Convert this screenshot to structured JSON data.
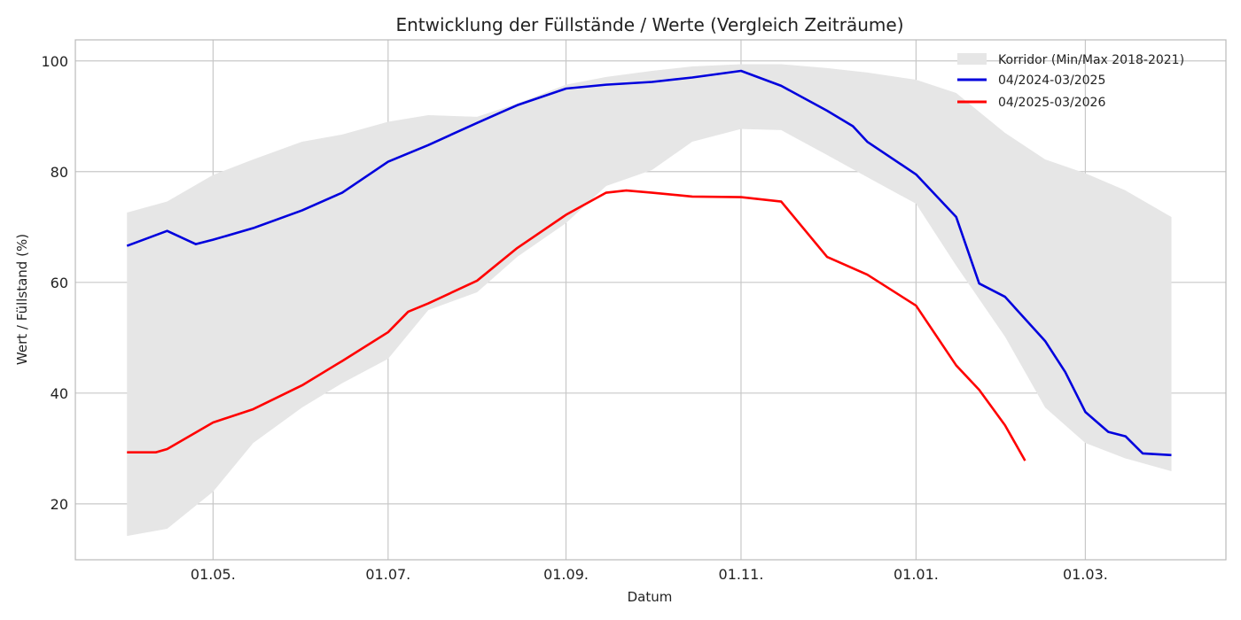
{
  "chart_data": {
    "type": "line",
    "title": "Entwicklung der Füllstände / Werte (Vergleich Zeiträume)",
    "xlabel": "Datum",
    "ylabel": "Wert / Füllstand (%)",
    "ylim": [
      9.9,
      103.8
    ],
    "xlim": [
      "14.03.",
      "19.04."
    ],
    "grid": true,
    "legend_position": "top-right",
    "x_ticks": [
      "01.05.",
      "01.07.",
      "01.09.",
      "01.11.",
      "01.01.",
      "01.03."
    ],
    "y_ticks": [
      20,
      40,
      60,
      80,
      100
    ],
    "band": {
      "name": "Korridor (Min/Max 2018-2021)",
      "color": "#e6e6e6",
      "x": [
        "01.04.",
        "15.04.",
        "01.05.",
        "15.05.",
        "01.06.",
        "15.06.",
        "01.07.",
        "15.07.",
        "01.08.",
        "15.08.",
        "01.09.",
        "15.09.",
        "01.10.",
        "15.10.",
        "01.11.",
        "15.11.",
        "01.12.",
        "15.12.",
        "01.01.",
        "15.01.",
        "01.02.",
        "15.02.",
        "01.03.",
        "15.03.",
        "31.03."
      ],
      "upper": [
        72.6,
        74.6,
        79.4,
        82.2,
        85.4,
        86.7,
        89.0,
        90.2,
        89.9,
        92.3,
        95.7,
        97.1,
        98.2,
        99.0,
        99.4,
        99.4,
        98.7,
        97.9,
        96.6,
        94.2,
        87.0,
        82.2,
        79.7,
        76.6,
        71.8
      ],
      "lower": [
        14.2,
        15.5,
        22.2,
        31.0,
        37.4,
        41.8,
        46.2,
        55.0,
        58.2,
        64.6,
        70.7,
        77.4,
        80.3,
        85.4,
        87.7,
        87.5,
        83.0,
        79.0,
        74.2,
        63.0,
        50.2,
        37.4,
        31.0,
        28.2,
        25.9
      ]
    },
    "series": [
      {
        "name": "04/2024-03/2025",
        "color": "#0000dd",
        "x": [
          "01.04.",
          "15.04.",
          "25.04.",
          "01.05.",
          "15.05.",
          "01.06.",
          "15.06.",
          "01.07.",
          "15.07.",
          "01.08.",
          "15.08.",
          "01.09.",
          "15.09.",
          "01.10.",
          "15.10.",
          "01.11.",
          "15.11.",
          "01.12.",
          "10.12.",
          "15.12.",
          "01.01.",
          "15.01.",
          "23.01.",
          "01.02.",
          "15.02.",
          "22.02.",
          "01.03.",
          "09.03.",
          "15.03.",
          "21.03.",
          "31.03."
        ],
        "y": [
          66.6,
          69.3,
          66.9,
          67.7,
          69.8,
          73.0,
          76.2,
          81.8,
          84.8,
          88.8,
          92.0,
          95.0,
          95.7,
          96.2,
          97.0,
          98.2,
          95.5,
          91.0,
          88.2,
          85.4,
          79.5,
          71.8,
          59.8,
          57.4,
          49.4,
          43.8,
          36.6,
          33.0,
          32.2,
          29.1,
          28.8
        ]
      },
      {
        "name": "04/2025-03/2026",
        "color": "#ff0000",
        "x": [
          "01.04.",
          "11.04.",
          "15.04.",
          "01.05.",
          "15.05.",
          "01.06.",
          "15.06.",
          "01.07.",
          "08.07.",
          "15.07.",
          "01.08.",
          "15.08.",
          "01.09.",
          "15.09.",
          "22.09.",
          "01.10.",
          "15.10.",
          "01.11.",
          "15.11.",
          "01.12.",
          "15.12.",
          "01.01.",
          "15.01.",
          "23.01.",
          "01.02.",
          "08.02."
        ],
        "y": [
          29.3,
          29.3,
          29.9,
          34.7,
          37.1,
          41.4,
          45.8,
          51.0,
          54.7,
          56.2,
          60.3,
          66.2,
          72.2,
          76.2,
          76.6,
          76.2,
          75.5,
          75.4,
          74.6,
          64.6,
          61.4,
          55.8,
          45.0,
          40.6,
          34.2,
          27.8
        ]
      }
    ]
  }
}
